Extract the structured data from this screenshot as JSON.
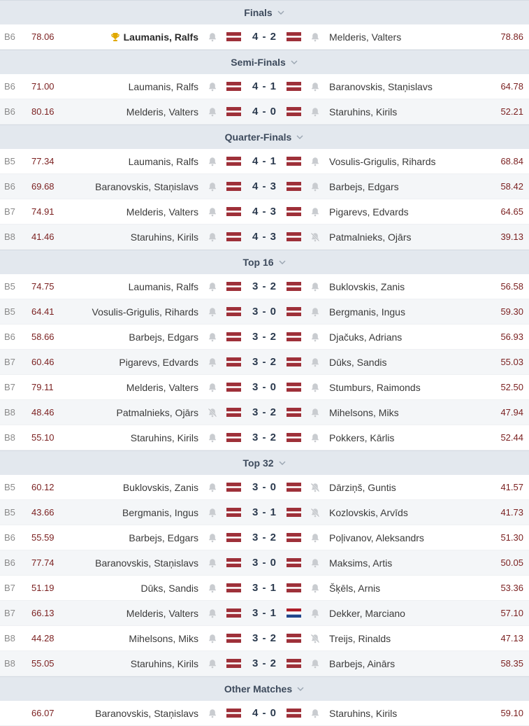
{
  "sections": [
    {
      "title": "Finals",
      "matches": [
        {
          "bo": "B6",
          "avg1": "78.06",
          "p1": "Laumanis, Ralfs",
          "winner": true,
          "score": "4 - 2",
          "p2": "Melderis, Valters",
          "avg2": "78.86",
          "flag1": "lv",
          "flag2": "lv",
          "bell1": "on",
          "bell2": "on"
        }
      ]
    },
    {
      "title": "Semi-Finals",
      "matches": [
        {
          "bo": "B6",
          "avg1": "71.00",
          "p1": "Laumanis, Ralfs",
          "score": "4 - 1",
          "p2": "Baranovskis, Staņislavs",
          "avg2": "64.78",
          "flag1": "lv",
          "flag2": "lv",
          "bell1": "on",
          "bell2": "on"
        },
        {
          "bo": "B6",
          "avg1": "80.16",
          "p1": "Melderis, Valters",
          "score": "4 - 0",
          "p2": "Staruhins, Kirils",
          "avg2": "52.21",
          "flag1": "lv",
          "flag2": "lv",
          "bell1": "on",
          "bell2": "on"
        }
      ]
    },
    {
      "title": "Quarter-Finals",
      "matches": [
        {
          "bo": "B5",
          "avg1": "77.34",
          "p1": "Laumanis, Ralfs",
          "score": "4 - 1",
          "p2": "Vosulis-Grigulis, Rihards",
          "avg2": "68.84",
          "flag1": "lv",
          "flag2": "lv",
          "bell1": "on",
          "bell2": "on"
        },
        {
          "bo": "B6",
          "avg1": "69.68",
          "p1": "Baranovskis, Staņislavs",
          "score": "4 - 3",
          "p2": "Barbejs, Edgars",
          "avg2": "58.42",
          "flag1": "lv",
          "flag2": "lv",
          "bell1": "on",
          "bell2": "on"
        },
        {
          "bo": "B7",
          "avg1": "74.91",
          "p1": "Melderis, Valters",
          "score": "4 - 3",
          "p2": "Pigarevs, Edvards",
          "avg2": "64.65",
          "flag1": "lv",
          "flag2": "lv",
          "bell1": "on",
          "bell2": "on"
        },
        {
          "bo": "B8",
          "avg1": "41.46",
          "p1": "Staruhins, Kirils",
          "score": "4 - 3",
          "p2": "Patmalnieks, Ojārs",
          "avg2": "39.13",
          "flag1": "lv",
          "flag2": "lv",
          "bell1": "on",
          "bell2": "off"
        }
      ]
    },
    {
      "title": "Top 16",
      "matches": [
        {
          "bo": "B5",
          "avg1": "74.75",
          "p1": "Laumanis, Ralfs",
          "score": "3 - 2",
          "p2": "Buklovskis, Zanis",
          "avg2": "56.58",
          "flag1": "lv",
          "flag2": "lv",
          "bell1": "on",
          "bell2": "on"
        },
        {
          "bo": "B5",
          "avg1": "64.41",
          "p1": "Vosulis-Grigulis, Rihards",
          "score": "3 - 0",
          "p2": "Bergmanis, Ingus",
          "avg2": "59.30",
          "flag1": "lv",
          "flag2": "lv",
          "bell1": "on",
          "bell2": "on"
        },
        {
          "bo": "B6",
          "avg1": "58.66",
          "p1": "Barbejs, Edgars",
          "score": "3 - 2",
          "p2": "Djačuks, Adrians",
          "avg2": "56.93",
          "flag1": "lv",
          "flag2": "lv",
          "bell1": "on",
          "bell2": "on"
        },
        {
          "bo": "B7",
          "avg1": "60.46",
          "p1": "Pigarevs, Edvards",
          "score": "3 - 2",
          "p2": "Dūks, Sandis",
          "avg2": "55.03",
          "flag1": "lv",
          "flag2": "lv",
          "bell1": "on",
          "bell2": "on"
        },
        {
          "bo": "B7",
          "avg1": "79.11",
          "p1": "Melderis, Valters",
          "score": "3 - 0",
          "p2": "Stumburs, Raimonds",
          "avg2": "52.50",
          "flag1": "lv",
          "flag2": "lv",
          "bell1": "on",
          "bell2": "on"
        },
        {
          "bo": "B8",
          "avg1": "48.46",
          "p1": "Patmalnieks, Ojārs",
          "score": "3 - 2",
          "p2": "Mihelsons, Miks",
          "avg2": "47.94",
          "flag1": "lv",
          "flag2": "lv",
          "bell1": "off",
          "bell2": "on"
        },
        {
          "bo": "B8",
          "avg1": "55.10",
          "p1": "Staruhins, Kirils",
          "score": "3 - 2",
          "p2": "Pokkers, Kārlis",
          "avg2": "52.44",
          "flag1": "lv",
          "flag2": "lv",
          "bell1": "on",
          "bell2": "on"
        }
      ]
    },
    {
      "title": "Top 32",
      "matches": [
        {
          "bo": "B5",
          "avg1": "60.12",
          "p1": "Buklovskis, Zanis",
          "score": "3 - 0",
          "p2": "Dārziņš, Guntis",
          "avg2": "41.57",
          "flag1": "lv",
          "flag2": "lv",
          "bell1": "on",
          "bell2": "off"
        },
        {
          "bo": "B5",
          "avg1": "43.66",
          "p1": "Bergmanis, Ingus",
          "score": "3 - 1",
          "p2": "Kozlovskis, Arvīds",
          "avg2": "41.73",
          "flag1": "lv",
          "flag2": "lv",
          "bell1": "on",
          "bell2": "off"
        },
        {
          "bo": "B6",
          "avg1": "55.59",
          "p1": "Barbejs, Edgars",
          "score": "3 - 2",
          "p2": "Poļivanov, Aleksandrs",
          "avg2": "51.30",
          "flag1": "lv",
          "flag2": "lv",
          "bell1": "on",
          "bell2": "on"
        },
        {
          "bo": "B6",
          "avg1": "77.74",
          "p1": "Baranovskis, Staņislavs",
          "score": "3 - 0",
          "p2": "Maksims, Artis",
          "avg2": "50.05",
          "flag1": "lv",
          "flag2": "lv",
          "bell1": "on",
          "bell2": "on"
        },
        {
          "bo": "B7",
          "avg1": "51.19",
          "p1": "Dūks, Sandis",
          "score": "3 - 1",
          "p2": "Šķēls, Arnis",
          "avg2": "53.36",
          "flag1": "lv",
          "flag2": "lv",
          "bell1": "on",
          "bell2": "on"
        },
        {
          "bo": "B7",
          "avg1": "66.13",
          "p1": "Melderis, Valters",
          "score": "3 - 1",
          "p2": "Dekker, Marciano",
          "avg2": "57.10",
          "flag1": "lv",
          "flag2": "nl",
          "bell1": "on",
          "bell2": "on"
        },
        {
          "bo": "B8",
          "avg1": "44.28",
          "p1": "Mihelsons, Miks",
          "score": "3 - 2",
          "p2": "Treijs, Rinalds",
          "avg2": "47.13",
          "flag1": "lv",
          "flag2": "lv",
          "bell1": "on",
          "bell2": "off"
        },
        {
          "bo": "B8",
          "avg1": "55.05",
          "p1": "Staruhins, Kirils",
          "score": "3 - 2",
          "p2": "Barbejs, Ainārs",
          "avg2": "58.35",
          "flag1": "lv",
          "flag2": "lv",
          "bell1": "on",
          "bell2": "on"
        }
      ]
    },
    {
      "title": "Other Matches",
      "matches": [
        {
          "bo": "",
          "avg1": "66.07",
          "p1": "Baranovskis, Staņislavs",
          "score": "4 - 0",
          "p2": "Staruhins, Kirils",
          "avg2": "59.10",
          "flag1": "lv",
          "flag2": "lv",
          "bell1": "on",
          "bell2": "on"
        }
      ]
    }
  ],
  "colors": {
    "header_bg": "#e3e8ee",
    "avg_color": "#7a1f1f",
    "latvia_red": "#9e3039",
    "bell": "#c5c8cc"
  }
}
